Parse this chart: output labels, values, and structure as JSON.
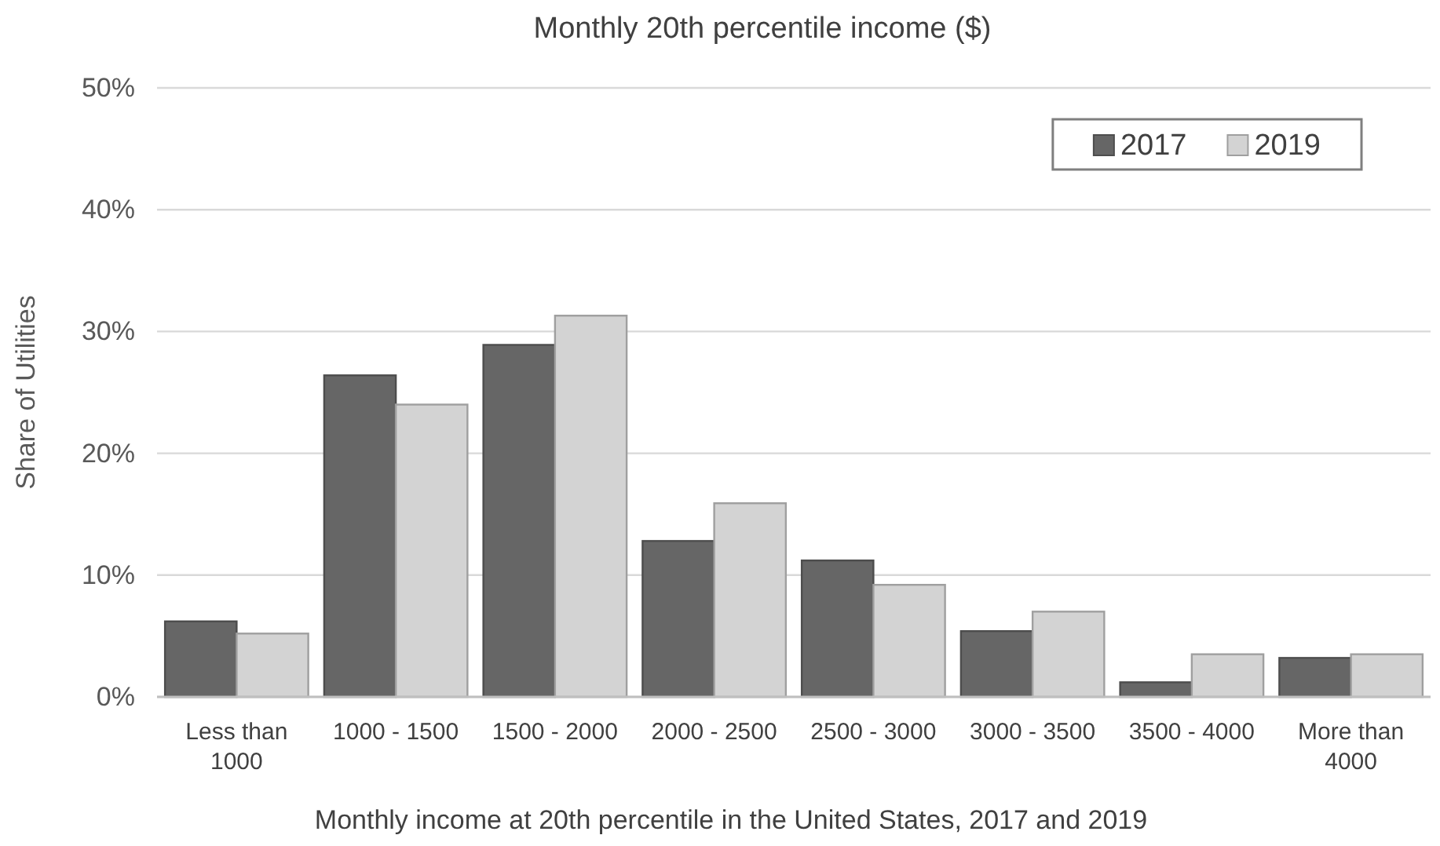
{
  "chart_data": {
    "type": "bar",
    "title": "Monthly 20th percentile income ($)",
    "xlabel": "Monthly income at 20th percentile in the United States, 2017 and 2019",
    "ylabel": "Share of Utilities",
    "categories": [
      "Less than 1000",
      "1000 - 1500",
      "1500 - 2000",
      "2000 - 2500",
      "2500 - 3000",
      "3000 - 3500",
      "3500 - 4000",
      "More than 4000"
    ],
    "series": [
      {
        "name": "2017",
        "color": "#666666",
        "values": [
          6.2,
          26.4,
          28.9,
          12.8,
          11.2,
          5.4,
          1.2,
          3.2
        ]
      },
      {
        "name": "2019",
        "color": "#d3d3d3",
        "values": [
          5.2,
          24.0,
          31.3,
          15.9,
          9.2,
          7.0,
          3.5,
          3.5
        ]
      }
    ],
    "ylim": [
      0,
      50
    ],
    "yticks": [
      {
        "value": 0,
        "label": "0%"
      },
      {
        "value": 10,
        "label": "10%"
      },
      {
        "value": 20,
        "label": "20%"
      },
      {
        "value": 30,
        "label": "30%"
      },
      {
        "value": 40,
        "label": "40%"
      },
      {
        "value": 50,
        "label": "50%"
      }
    ],
    "grid": "y",
    "legend": "top right"
  }
}
